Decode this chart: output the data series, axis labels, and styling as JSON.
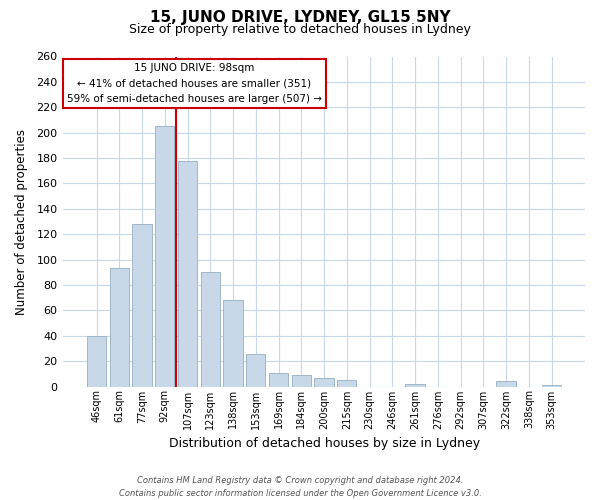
{
  "title": "15, JUNO DRIVE, LYDNEY, GL15 5NY",
  "subtitle": "Size of property relative to detached houses in Lydney",
  "xlabel": "Distribution of detached houses by size in Lydney",
  "ylabel": "Number of detached properties",
  "bar_labels": [
    "46sqm",
    "61sqm",
    "77sqm",
    "92sqm",
    "107sqm",
    "123sqm",
    "138sqm",
    "153sqm",
    "169sqm",
    "184sqm",
    "200sqm",
    "215sqm",
    "230sqm",
    "246sqm",
    "261sqm",
    "276sqm",
    "292sqm",
    "307sqm",
    "322sqm",
    "338sqm",
    "353sqm"
  ],
  "bar_values": [
    40,
    93,
    128,
    205,
    178,
    90,
    68,
    26,
    11,
    9,
    7,
    5,
    0,
    0,
    2,
    0,
    0,
    0,
    4,
    0,
    1
  ],
  "bar_color": "#c8d8e8",
  "bar_edge_color": "#a0b8cc",
  "vline_x": 3.5,
  "vline_color": "#cc0000",
  "ylim": [
    0,
    260
  ],
  "yticks": [
    0,
    20,
    40,
    60,
    80,
    100,
    120,
    140,
    160,
    180,
    200,
    220,
    240,
    260
  ],
  "annotation_line1": "15 JUNO DRIVE: 98sqm",
  "annotation_line2": "← 41% of detached houses are smaller (351)",
  "annotation_line3": "59% of semi-detached houses are larger (507) →",
  "footer_text": "Contains HM Land Registry data © Crown copyright and database right 2024.\nContains public sector information licensed under the Open Government Licence v3.0.",
  "bg_color": "#ffffff",
  "grid_color": "#c8d8e8"
}
